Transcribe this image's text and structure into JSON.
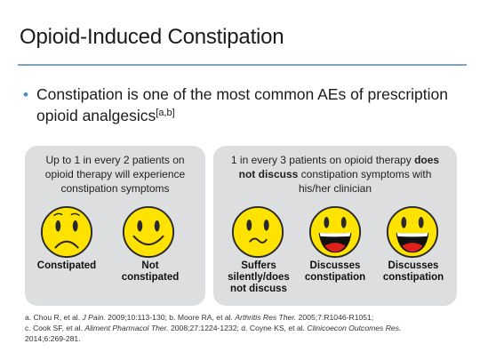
{
  "slide": {
    "title": "Opioid-Induced Constipation",
    "bullet": {
      "text": "Constipation is one of the most common AEs of prescription opioid analgesics",
      "superscript": "[a,b]"
    }
  },
  "left_panel": {
    "caption": "Up to 1 in every 2 patients on opioid therapy will experience constipation symptoms",
    "faces": [
      {
        "icon": "sad-face-icon",
        "label": "Constipated"
      },
      {
        "icon": "smiling-face-icon",
        "label": "Not constipated"
      }
    ]
  },
  "right_panel": {
    "caption_before": "1 in every 3 patients on opioid therapy ",
    "caption_bold": "does not discuss",
    "caption_after": " constipation symptoms with his/her clinician",
    "faces": [
      {
        "icon": "uneasy-face-icon",
        "label": "Suffers silently/does not discuss"
      },
      {
        "icon": "laughing-face-icon",
        "label": "Discusses constipation"
      },
      {
        "icon": "laughing-face-icon",
        "label": "Discusses constipation"
      }
    ]
  },
  "footnotes": {
    "line1_a": "a. Chou R, et al. ",
    "line1_a_journal": "J Pain.",
    "line1_a_rest": " 2009;10:113-130; b. Moore RA, et al. ",
    "line1_b_journal": "Arthritis Res Ther.",
    "line1_b_rest": " 2005;7:R1046-R1051;",
    "line2_c": "c. Cook SF, et al. ",
    "line2_c_journal": "Aliment Pharmacol Ther.",
    "line2_c_rest": " 2008;27:1224-1232; d. Coyne KS, et al. ",
    "line2_d_journal": "Clinicoecon Outcomes Res.",
    "line3": "2014;6:269-281."
  },
  "colors": {
    "face_fill": "#ffe300",
    "face_outline": "#2a2a2a",
    "mouth_red": "#e0201b",
    "rule": "#7fa2bd",
    "bullet": "#3e8ec0",
    "panel": "#dcdedf"
  }
}
